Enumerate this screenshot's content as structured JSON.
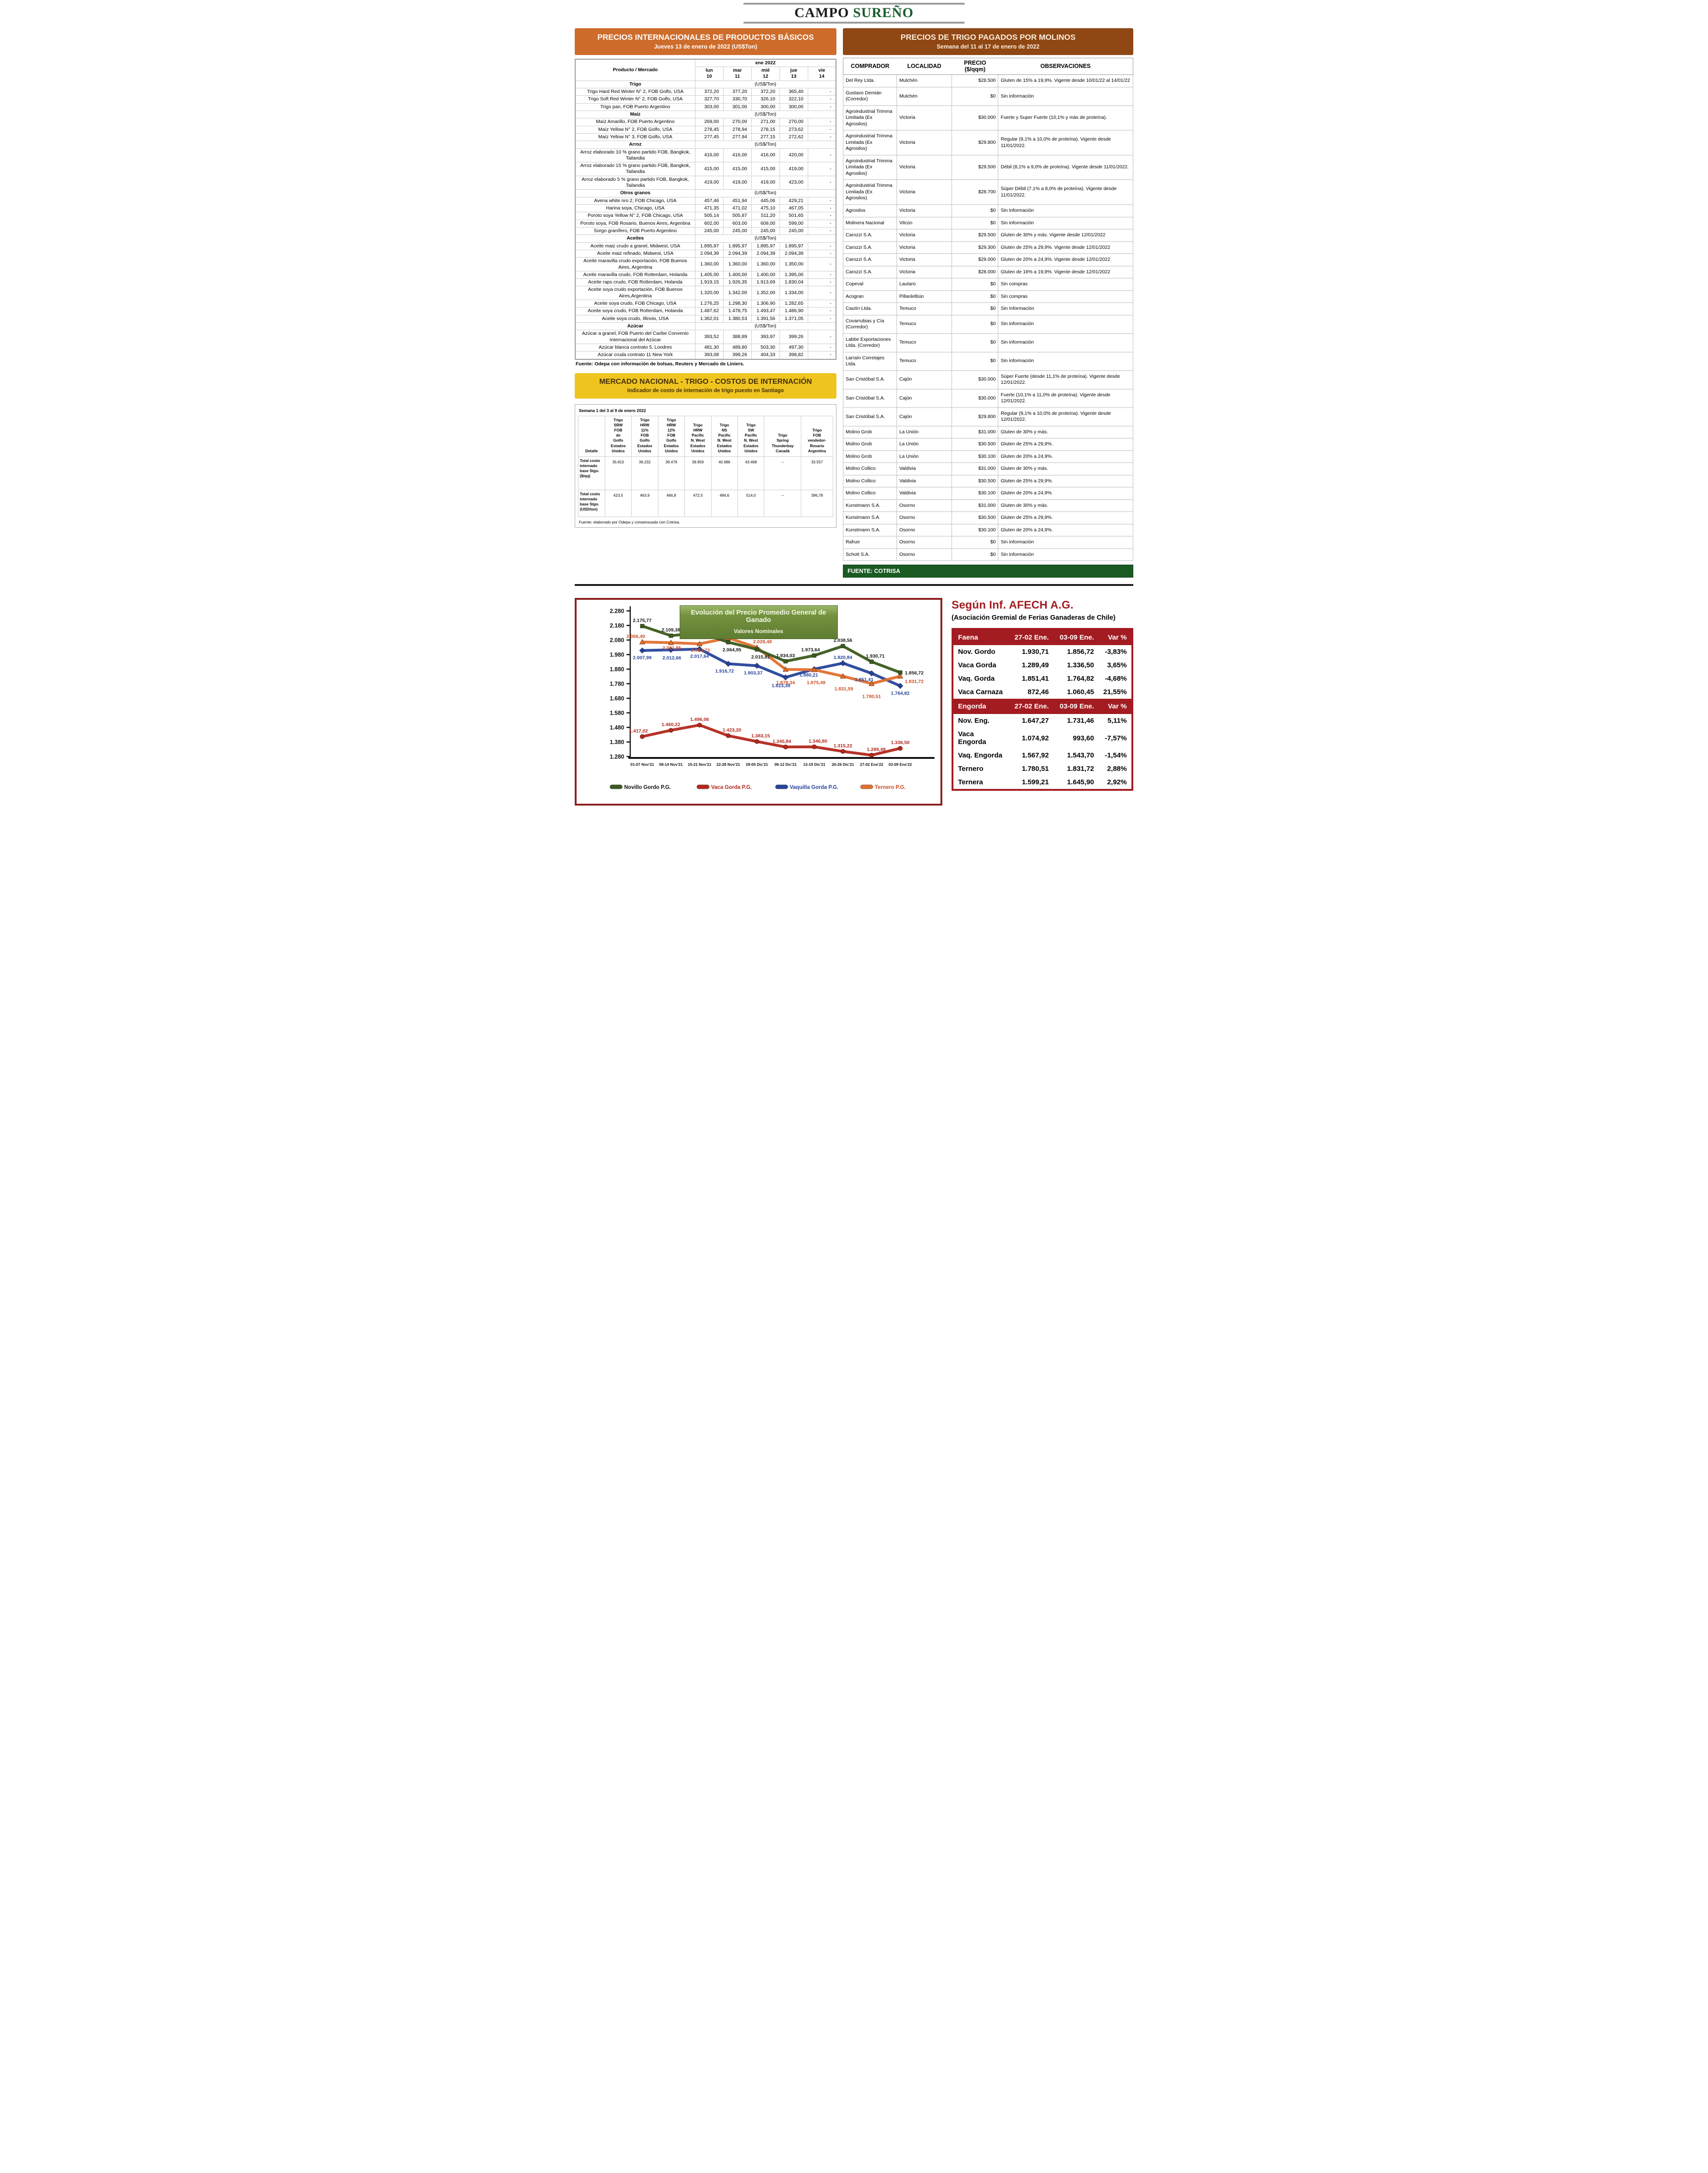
{
  "colors": {
    "orange_banner": "#CE6C2B",
    "yellow_banner": "#EFC41F",
    "yellow_banner_text": "#44300A",
    "brown_banner": "#8F4714",
    "green_source_bar": "#1A5A23",
    "chart_title_bg": "#74923F",
    "afech_red": "#A21C21",
    "chart_box_border": "#8B1F1F",
    "masthead_green": "#1A5E2F",
    "series_novillo": "#3C5A1E",
    "series_vaca": "#B3281E",
    "series_vaquilla": "#27449C",
    "series_ternero": "#E0702E"
  },
  "masthead": {
    "title_black": "CAMPO",
    "title_green": "SUREÑO"
  },
  "international": {
    "title": "PRECIOS INTERNACIONALES DE PRODUCTOS BÁSICOS",
    "subtitle": "Jueves 13 de enero de 2022 (US$Ton)",
    "product_header": "Producto / Mercado",
    "col_group": "ene 2022",
    "day_cols": [
      {
        "d": "lun",
        "n": "10"
      },
      {
        "d": "mar",
        "n": "11"
      },
      {
        "d": "mié",
        "n": "12"
      },
      {
        "d": "jue",
        "n": "13"
      },
      {
        "d": "vie",
        "n": "14"
      }
    ],
    "unit_label": "(US$/Ton)",
    "sections": [
      {
        "name": "Trigo",
        "rows": [
          {
            "label": "Trigo Hard Red Winter N° 2, FOB Golfo, USA",
            "values": [
              "372,20",
              "377,20",
              "372,20",
              "365,40",
              "-"
            ]
          },
          {
            "label": "Trigo Soft Red Winter N° 2, FOB Golfo, USA",
            "values": [
              "327,70",
              "330,70",
              "326,10",
              "322,10",
              "-"
            ]
          },
          {
            "label": "Trigo pan, FOB Puerto Argentino",
            "values": [
              "303,00",
              "301,00",
              "300,00",
              "300,00",
              "-"
            ]
          }
        ]
      },
      {
        "name": "Maíz",
        "rows": [
          {
            "label": "Maíz Amarillo, FOB Puerto Argentino",
            "values": [
              "269,00",
              "270,00",
              "271,00",
              "270,00",
              "-"
            ]
          },
          {
            "label": "Maíz Yellow N° 2, FOB Golfo, USA",
            "values": [
              "278,45",
              "278,94",
              "278,15",
              "273,62",
              "-"
            ]
          },
          {
            "label": "Maíz Yellow N° 3, FOB Golfo, USA",
            "values": [
              "277,45",
              "277,94",
              "277,15",
              "272,62",
              "-"
            ]
          }
        ]
      },
      {
        "name": "Arroz",
        "rows": [
          {
            "label": "Arroz elaborado 10 % grano partido FOB, Bangkok, Tailandia",
            "values": [
              "416,00",
              "416,00",
              "416,00",
              "420,00",
              "-"
            ]
          },
          {
            "label": "Arroz elaborado 15 % grano partido FOB, Bangkok, Tailandia",
            "values": [
              "415,00",
              "415,00",
              "415,00",
              "419,00",
              "-"
            ]
          },
          {
            "label": "Arroz elaborado 5 % grano partido FOB, Bangkok, Tailandia",
            "values": [
              "419,00",
              "419,00",
              "419,00",
              "423,00",
              "-"
            ]
          }
        ]
      },
      {
        "name": "Otros granos",
        "rows": [
          {
            "label": "Avena white nro 2, FOB Chicago, USA",
            "values": [
              "457,46",
              "451,94",
              "445,06",
              "429,21",
              "-"
            ]
          },
          {
            "label": "Harina soya, Chicago, USA",
            "values": [
              "471,35",
              "471,02",
              "475,10",
              "467,05",
              "-"
            ]
          },
          {
            "label": "Poroto soya Yellow N° 2, FOB Chicago, USA",
            "values": [
              "505,14",
              "505,87",
              "511,20",
              "501,65",
              "-"
            ]
          },
          {
            "label": "Poroto soya, FOB Rosario, Buenos Aires, Argentina",
            "values": [
              "602,00",
              "603,00",
              "609,00",
              "599,00",
              "-"
            ]
          },
          {
            "label": "Sorgo granífero, FOB Puerto Argentino",
            "values": [
              "245,00",
              "245,00",
              "245,00",
              "245,00",
              "-"
            ]
          }
        ]
      },
      {
        "name": "Aceites",
        "rows": [
          {
            "label": "Aceite maiz crudo a granel, Midwest, USA",
            "values": [
              "1.895,97",
              "1.895,97",
              "1.895,97",
              "1.895,97",
              "-"
            ]
          },
          {
            "label": "Aceite maiz refinado, Midwest, USA",
            "values": [
              "2.094,39",
              "2.094,39",
              "2.094,39",
              "2.094,39",
              "-"
            ]
          },
          {
            "label": "Aceite maravilla crudo exportación, FOB Buenos Aires, Argentina",
            "values": [
              "1.360,00",
              "1.360,00",
              "1.360,00",
              "1.350,00",
              "-"
            ]
          },
          {
            "label": "Aceite maravilla crudo, FOB Rotterdam, Holanda",
            "values": [
              "1.405,00",
              "1.400,00",
              "1.400,00",
              "1.395,00",
              "-"
            ]
          },
          {
            "label": "Aceite raps crudo, FOB Rotterdam, Holanda",
            "values": [
              "1.919,15",
              "1.926,35",
              "1.913,69",
              "1.830,04",
              "-"
            ]
          },
          {
            "label": "Aceite soya crudo exportación, FOB Buenos Aires,Argentina",
            "values": [
              "1.320,00",
              "1.342,00",
              "1.352,00",
              "1.334,00",
              "-"
            ]
          },
          {
            "label": "Aceite soya crudo, FOB Chicago, USA",
            "values": [
              "1.276,25",
              "1.298,30",
              "1.306,90",
              "1.282,65",
              "-"
            ]
          },
          {
            "label": "Aceite soya crudo, FOB Rotterdam, Holanda",
            "values": [
              "1.487,62",
              "1.478,75",
              "1.493,47",
              "1.486,90",
              "-"
            ]
          },
          {
            "label": "Aceite soya crudo, Illinois, USA",
            "values": [
              "1.362,01",
              "1.380,53",
              "1.391,56",
              "1.371,05",
              "-"
            ]
          }
        ]
      },
      {
        "name": "Azúcar",
        "rows": [
          {
            "label": "Azúcar a granel, FOB Puerto del Caribe Convenio Internacional del Azúcar",
            "values": [
              "393,52",
              "388,89",
              "393,97",
              "399,26",
              "-"
            ]
          },
          {
            "label": "Azúcar blanca contrato 5, Londres",
            "values": [
              "481,30",
              "489,80",
              "503,30",
              "497,30",
              "-"
            ]
          },
          {
            "label": "Azúcar cruda contrato 11 New York",
            "values": [
              "393,08",
              "399,26",
              "404,33",
              "398,82",
              "-"
            ]
          }
        ]
      }
    ],
    "fuente": "Fuente: Odepa con información de bolsas, Reuters y Mercado de Liniers."
  },
  "internacion": {
    "title": "MERCADO NACIONAL - TRIGO - COSTOS DE INTERNACIÓN",
    "subtitle": "Indicador de costo de internación de trigo puesto en Santiago",
    "week_label": "Semana 1 del 3 al 9 de enero 2022",
    "col0": "Detalle",
    "columns": [
      "Trigo SRW FOB de Golfo Estados Unidos",
      "Trigo HRW 11% FOB Golfo Estados Unidos",
      "Trigo HRW 12% FOB Golfo Estados Unidos",
      "Trigo HRW Pacific N. West Estados Unidos",
      "Trigo NS Pacific N. West Estados Unidos",
      "Trigo SW Pacific N. West Estados Unidos",
      "Trigo Spring Thunderbay Canadá",
      "Trigo FOB vendedor- Rosario Argentina"
    ],
    "rows": [
      {
        "label": "Total costo internado base Stgo. ($/qq)",
        "values": [
          "35.815",
          "39.232",
          "39.479",
          "39.959",
          "40.986",
          "43.468",
          "–",
          "33.557"
        ]
      },
      {
        "label": "Total costo internado base Stgo. (USD/ton)",
        "values": [
          "423,5",
          "463,9",
          "466,8",
          "472,5",
          "484,6",
          "514,0",
          "–",
          "396,78"
        ]
      }
    ],
    "fuente": "Fuente: elaborado por Odepa y consensuada con Cotrisa."
  },
  "molinos": {
    "title": "PRECIOS DE TRIGO PAGADOS POR MOLINOS",
    "subtitle": "Semana del 11 al 17 de enero de 2022",
    "columns": {
      "comprador": "COMPRADOR",
      "localidad": "LOCALIDAD",
      "precio_line1": "PRECIO",
      "precio_line2": "($/qqm)",
      "observaciones": "OBSERVACIONES"
    },
    "rows": [
      [
        "Del Rey Ltda.",
        "Mulchén",
        "$28.500",
        "Gluten de 15% a 19,9%. Vigente desde 10/01/22 al 14/01/22"
      ],
      [
        "Gustavo Demián (Corredor)",
        "Mulchén",
        "$0",
        "Sin información"
      ],
      [
        "Agroindustrial Trimma Limitada (Ex Agrosilos)",
        "Victoria",
        "$30.000",
        "Fuerte y Super Fuerte (10,1% y más de proteína)."
      ],
      [
        "Agroindustrial Trimma Limitada (Ex Agrosilos)",
        "Victoria",
        "$29.800",
        "Regular (9,1% a 10,0% de proteína). Vigente desde 11/01/2022."
      ],
      [
        "Agroindustrial Trimma Limitada (Ex Agrosilos)",
        "Victoria",
        "$29.500",
        "Débil (8,1% a 9,0% de proteína). Vigente desde 11/01/2022."
      ],
      [
        "Agroindustrial Trimma Limitada (Ex Agrosilos)",
        "Victoria",
        "$28.700",
        "Súper Débil (7,1% a 8,0% de proteína). Vigente desde 11/01/2022."
      ],
      [
        "Agrosilos",
        "Victoria",
        "$0",
        "Sin información"
      ],
      [
        "Molinera Nacional",
        "Vilcún",
        "$0",
        "Sin información"
      ],
      [
        "Carozzi S.A.",
        "Victoria",
        "$29.500",
        "Gluten de 30% y más. Vigente desde 12/01/2022"
      ],
      [
        "Carozzi S.A.",
        "Victoria",
        "$29.300",
        "Gluten de 25% a 29,9%. Vigente desde 12/01/2022"
      ],
      [
        "Carozzi S.A.",
        "Victoria",
        "$29.000",
        "Gluten de 20% a 24,9%. Vigente desde 12/01/2022"
      ],
      [
        "Carozzi S.A.",
        "Victoria",
        "$28.000",
        "Gluten de 16% a 19,9%. Vigente desde 12/01/2022"
      ],
      [
        "Copeval",
        "Lautaro",
        "$0",
        "Sin compras"
      ],
      [
        "Acogran",
        "Pillanlelbún",
        "$0",
        "Sin compras"
      ],
      [
        "Cautín Ltda.",
        "Temuco",
        "$0",
        "Sin Información"
      ],
      [
        "Covarrubias y Cía (Corredor)",
        "Temuco",
        "$0",
        "Sin información"
      ],
      [
        "Labbe Exportaciones Ltda. (Corredor)",
        "Temuco",
        "$0",
        "Sin información"
      ],
      [
        "Larraín Corretajes Ltda.",
        "Temuco",
        "$0",
        "Sin información"
      ],
      [
        "San Cristóbal S.A.",
        "Cajón",
        "$30.000",
        "Súper Fuerte (desde 11,1% de proteína). Vigente desde 12/01/2022."
      ],
      [
        "San Cristóbal S.A.",
        "Cajón",
        "$30.000",
        "Fuerte (10,1% a 11,0% de proteína). Vigente desde 12/01/2022."
      ],
      [
        "San Cristóbal S.A.",
        "Cajón",
        "$29.800",
        "Regular (9,1% a 10,0% de proteína). Vigente desde 12/01/2022."
      ],
      [
        "Molino Grob",
        "La Unión",
        "$31.000",
        "Gluten de 30% y más."
      ],
      [
        "Molino Grob",
        "La Unión",
        "$30.500",
        "Gluten de 25% a 29,9%."
      ],
      [
        "Molino Grob",
        "La Unión",
        "$30.100",
        "Gluten de 20% a 24,9%."
      ],
      [
        "Molino Collico",
        "Valdivia",
        "$31.000",
        "Gluten de 30% y más."
      ],
      [
        "Molino Collico",
        "Valdivia",
        "$30.500",
        "Gluten de 25% a 29,9%."
      ],
      [
        "Molino Collico",
        "Valdivia",
        "$30.100",
        "Gluten de 20% a 24,9%."
      ],
      [
        "Kunstmann S.A.",
        "Osorno",
        "$31.000",
        "Gluten de 30% y más."
      ],
      [
        "Kunstmann S.A.",
        "Osorno",
        "$30.500",
        "Gluten de 25% a 29,9%."
      ],
      [
        "Kunstmann S.A.",
        "Osorno",
        "$30.100",
        "Gluten de 20% a 24,9%."
      ],
      [
        "Rahue",
        "Osorno",
        "$0",
        "Sin información"
      ],
      [
        "Schott S.A.",
        "Osorno",
        "$0",
        "Sin información"
      ]
    ],
    "fuente": "FUENTE: COTRISA"
  },
  "afech": {
    "title": "Según Inf. AFECH A.G.",
    "subtitle": "(Asociación Gremial de Ferias Ganaderas de Chile)",
    "faena": {
      "header": [
        "Faena",
        "27-02 Ene.",
        "03-09 Ene.",
        "Var %"
      ],
      "rows": [
        [
          "Nov. Gordo",
          "1.930,71",
          "1.856,72",
          "-3,83%"
        ],
        [
          "Vaca Gorda",
          "1.289,49",
          "1.336,50",
          "3,65%"
        ],
        [
          "Vaq. Gorda",
          "1.851,41",
          "1.764,82",
          "-4,68%"
        ],
        [
          "Vaca Carnaza",
          "872,46",
          "1.060,45",
          "21,55%"
        ]
      ]
    },
    "engorda": {
      "header": [
        "Engorda",
        "27-02 Ene.",
        "03-09 Ene.",
        "Var %"
      ],
      "rows": [
        [
          "Nov. Eng.",
          "1.647,27",
          "1.731,46",
          "5,11%"
        ],
        [
          "Vaca Engorda",
          "1.074,92",
          "993,60",
          "-7,57%"
        ],
        [
          "Vaq. Engorda",
          "1.567,92",
          "1.543,70",
          "-1,54%"
        ],
        [
          "Ternero",
          "1.780,51",
          "1.831,72",
          "2,88%"
        ],
        [
          "Ternera",
          "1.599,21",
          "1.645,90",
          "2,92%"
        ]
      ]
    }
  },
  "chart_data": {
    "type": "line",
    "title": "Evolución del Precio Promedio General de Ganado",
    "subtitle": "Valores Nominales",
    "ylabel": "",
    "xlabel": "",
    "ylim": [
      1280,
      2280
    ],
    "ytick_step": 100,
    "grid": false,
    "legend_position": "bottom",
    "categories": [
      "01-07 Nov'21",
      "08-14 Nov'21",
      "15-21 Nov'21",
      "22-28 Nov'21",
      "29-05 Dic'21",
      "06-12 Dic'21",
      "13-19 Dic'21",
      "20-26 Dic'21",
      "27-02 Ene'22",
      "03-09 Ene'22"
    ],
    "series": [
      {
        "name": "Novillo Gordo P.G.",
        "color": "#3C5A1E",
        "label_color": "#1a1a1a",
        "marker": "square",
        "values": [
          2175.77,
          2109.38,
          2130.5,
          2064.95,
          2015.81,
          1934.03,
          1973.64,
          2038.56,
          1930.71,
          1856.72
        ]
      },
      {
        "name": "Vaca Gorda P.G.",
        "color": "#B3281E",
        "label_color": "#B3281E",
        "marker": "circle",
        "values": [
          1417.02,
          1460.22,
          1496.06,
          1423.2,
          1383.15,
          1345.84,
          1346.8,
          1315.22,
          1289.49,
          1336.5
        ]
      },
      {
        "name": "Vaquilla Gorda P.G.",
        "color": "#27449C",
        "label_color": "#27449C",
        "marker": "diamond",
        "values": [
          2007.99,
          2012.66,
          2017.64,
          1916.72,
          1903.37,
          1823.39,
          1880.21,
          1920.84,
          1851.41,
          1764.82
        ]
      },
      {
        "name": "Ternero P.G.",
        "color": "#E0702E",
        "label_color": "#CC4E24",
        "marker": "triangle",
        "values": [
          2066.4,
          2061.85,
          2053.73,
          2094.44,
          2028.48,
          1878.34,
          1875.49,
          1831.59,
          1780.51,
          1831.72
        ]
      }
    ]
  }
}
